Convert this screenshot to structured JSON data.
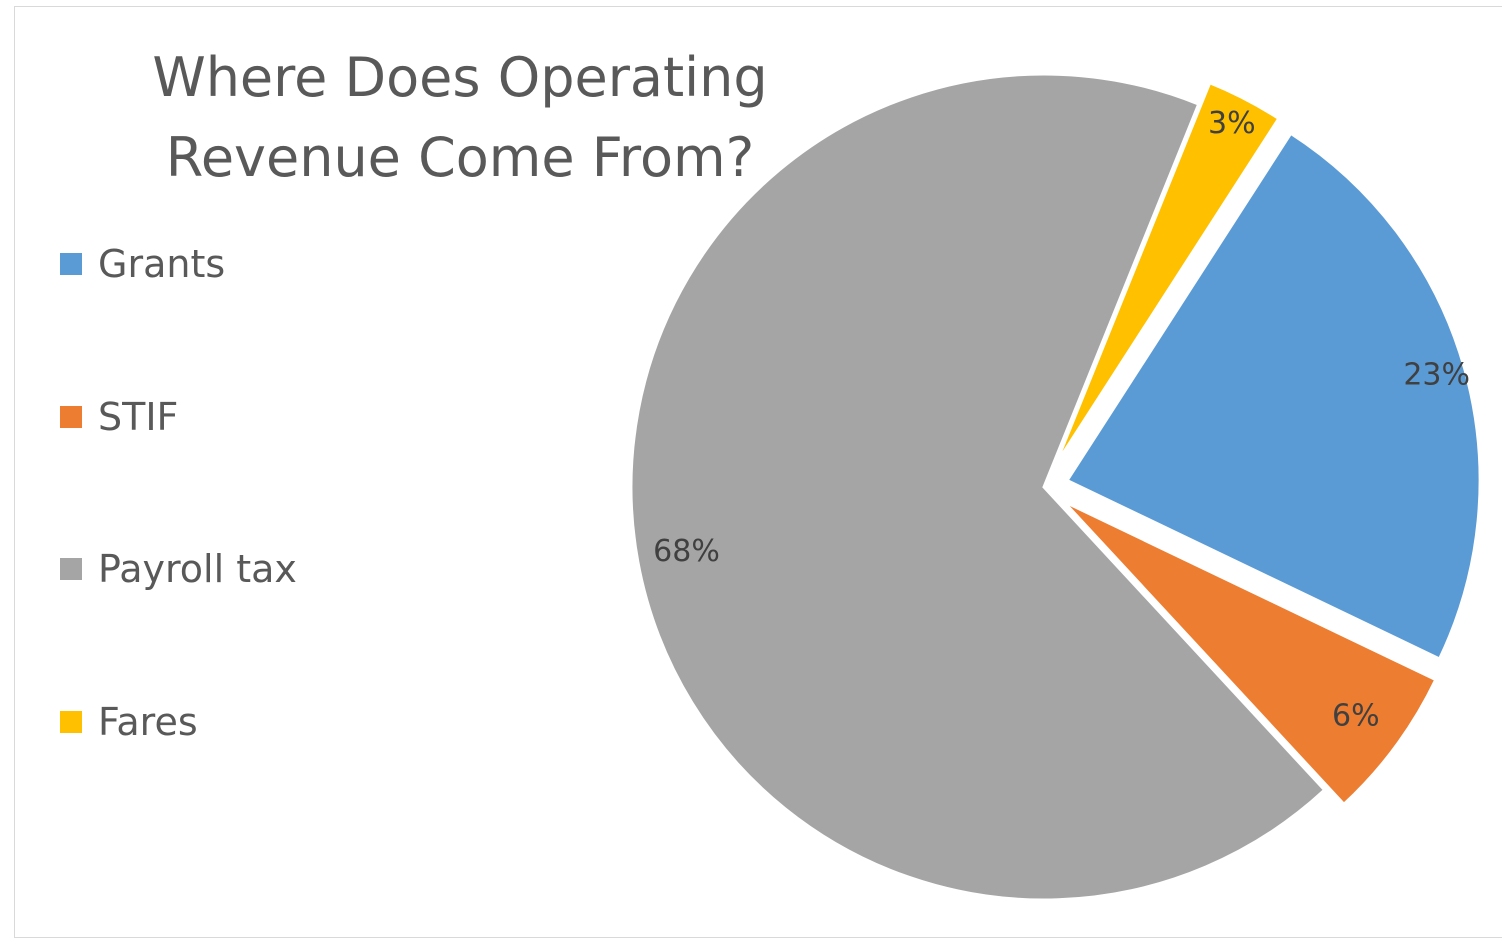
{
  "chart_data": {
    "type": "pie",
    "title": "Where Does Operating Revenue Come From?",
    "legend_position": "left",
    "slices": [
      {
        "name": "Grants",
        "value": 23,
        "label": "23%",
        "color": "#5B9BD5",
        "exploded": true
      },
      {
        "name": "STIF",
        "value": 6,
        "label": "6%",
        "color": "#ED7D31",
        "exploded": true
      },
      {
        "name": "Payroll tax",
        "value": 68,
        "label": "68%",
        "color": "#A5A5A5",
        "exploded": false
      },
      {
        "name": "Fares",
        "value": 3,
        "label": "3%",
        "color": "#FFC000",
        "exploded": true
      }
    ]
  }
}
